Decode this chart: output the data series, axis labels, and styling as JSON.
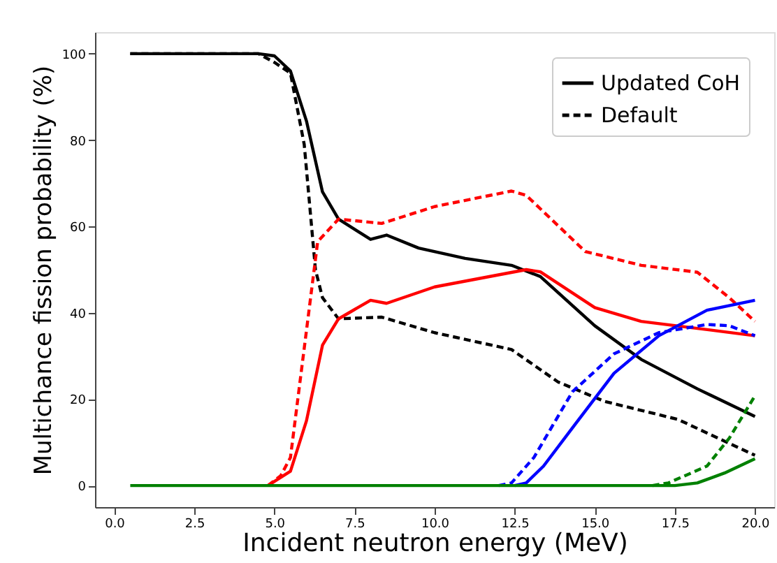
{
  "chart_data": {
    "type": "line",
    "xlabel": "Incident neutron energy (MeV)",
    "ylabel": "Multichance fission probability (%)",
    "xlim": [
      -0.6,
      20.6
    ],
    "ylim": [
      -5,
      105
    ],
    "xticks": [
      {
        "value": 0,
        "label": "0.0"
      },
      {
        "value": 2.5,
        "label": "2.5"
      },
      {
        "value": 5,
        "label": "5.0"
      },
      {
        "value": 7.5,
        "label": "7.5"
      },
      {
        "value": 10,
        "label": "10.0"
      },
      {
        "value": 12.5,
        "label": "12.5"
      },
      {
        "value": 15,
        "label": "15.0"
      },
      {
        "value": 17.5,
        "label": "17.5"
      },
      {
        "value": 20,
        "label": "20.0"
      }
    ],
    "yticks": [
      0,
      20,
      40,
      60,
      80,
      100
    ],
    "grid": false,
    "legend": "top right",
    "marker": "none",
    "series": [
      {
        "name": "Updated CoH",
        "color": "#000000",
        "line_style": "solid",
        "x": [
          0.5,
          2.5,
          4.5,
          5.0,
          5.5,
          6.0,
          6.5,
          7.0,
          8.0,
          8.5,
          9.5,
          10.95,
          12.4,
          13.3,
          15.0,
          16.45,
          18.2,
          20.0
        ],
        "values": [
          100,
          100,
          100,
          99.5,
          96,
          84.4,
          68,
          61.7,
          57,
          58,
          55,
          52.6,
          51,
          48.4,
          37,
          29.2,
          22.4,
          16
        ]
      },
      {
        "name": "Default",
        "color": "#000000",
        "line_style": "dashed",
        "x": [
          0.5,
          2.5,
          4.5,
          5.0,
          5.5,
          5.93,
          6.28,
          6.5,
          7.0,
          8.35,
          10.0,
          12.4,
          13.85,
          15.3,
          17.6,
          20.0
        ],
        "values": [
          100,
          100,
          100,
          98,
          95.5,
          79,
          50,
          43.5,
          38.6,
          39,
          35.4,
          31.5,
          24,
          19.5,
          15.3,
          7
        ]
      },
      {
        "color": "#ff0000",
        "line_style": "solid",
        "x": [
          4.8,
          5.07,
          5.5,
          6.0,
          6.5,
          7.0,
          8.0,
          8.5,
          10.0,
          12.86,
          13.3,
          15.0,
          16.45,
          18.2,
          20.0
        ],
        "values": [
          0,
          1.3,
          3.3,
          15,
          32.5,
          38.6,
          42.9,
          42.2,
          46,
          50,
          49.5,
          41.2,
          38,
          36.4,
          34.7
        ]
      },
      {
        "color": "#ff0000",
        "line_style": "dashed",
        "x": [
          4.8,
          5.2,
          5.5,
          6.35,
          7.0,
          8.35,
          10.0,
          12.4,
          12.86,
          14.7,
          16.45,
          18.2,
          19.2,
          20.0
        ],
        "values": [
          0,
          2.3,
          6.5,
          56.5,
          61.7,
          60.7,
          64.6,
          68.2,
          67.2,
          54.2,
          51,
          49.4,
          43.5,
          38
        ]
      },
      {
        "color": "#0000ff",
        "line_style": "solid",
        "x": [
          12.5,
          12.86,
          13.4,
          14.4,
          15.6,
          17.0,
          18.5,
          20.0
        ],
        "values": [
          0,
          0.6,
          4.5,
          14.3,
          26,
          34.7,
          40.6,
          42.9
        ]
      },
      {
        "color": "#0000ff",
        "line_style": "dashed",
        "x": [
          12.0,
          12.4,
          13.1,
          14.3,
          15.6,
          17.0,
          18.5,
          19.2,
          20.0
        ],
        "values": [
          0,
          0.6,
          6.5,
          21.7,
          30.5,
          35.4,
          37.3,
          37,
          34.7
        ]
      },
      {
        "color": "#008000",
        "line_style": "solid",
        "x": [
          0.5,
          17.5,
          18.2,
          19.05,
          20.0
        ],
        "values": [
          0,
          0,
          0.6,
          2.9,
          6.2
        ]
      },
      {
        "color": "#008000",
        "line_style": "dashed",
        "x": [
          16.8,
          17.3,
          18.5,
          19.2,
          20.0
        ],
        "values": [
          0,
          0.6,
          4.5,
          11,
          20.8
        ]
      }
    ]
  }
}
